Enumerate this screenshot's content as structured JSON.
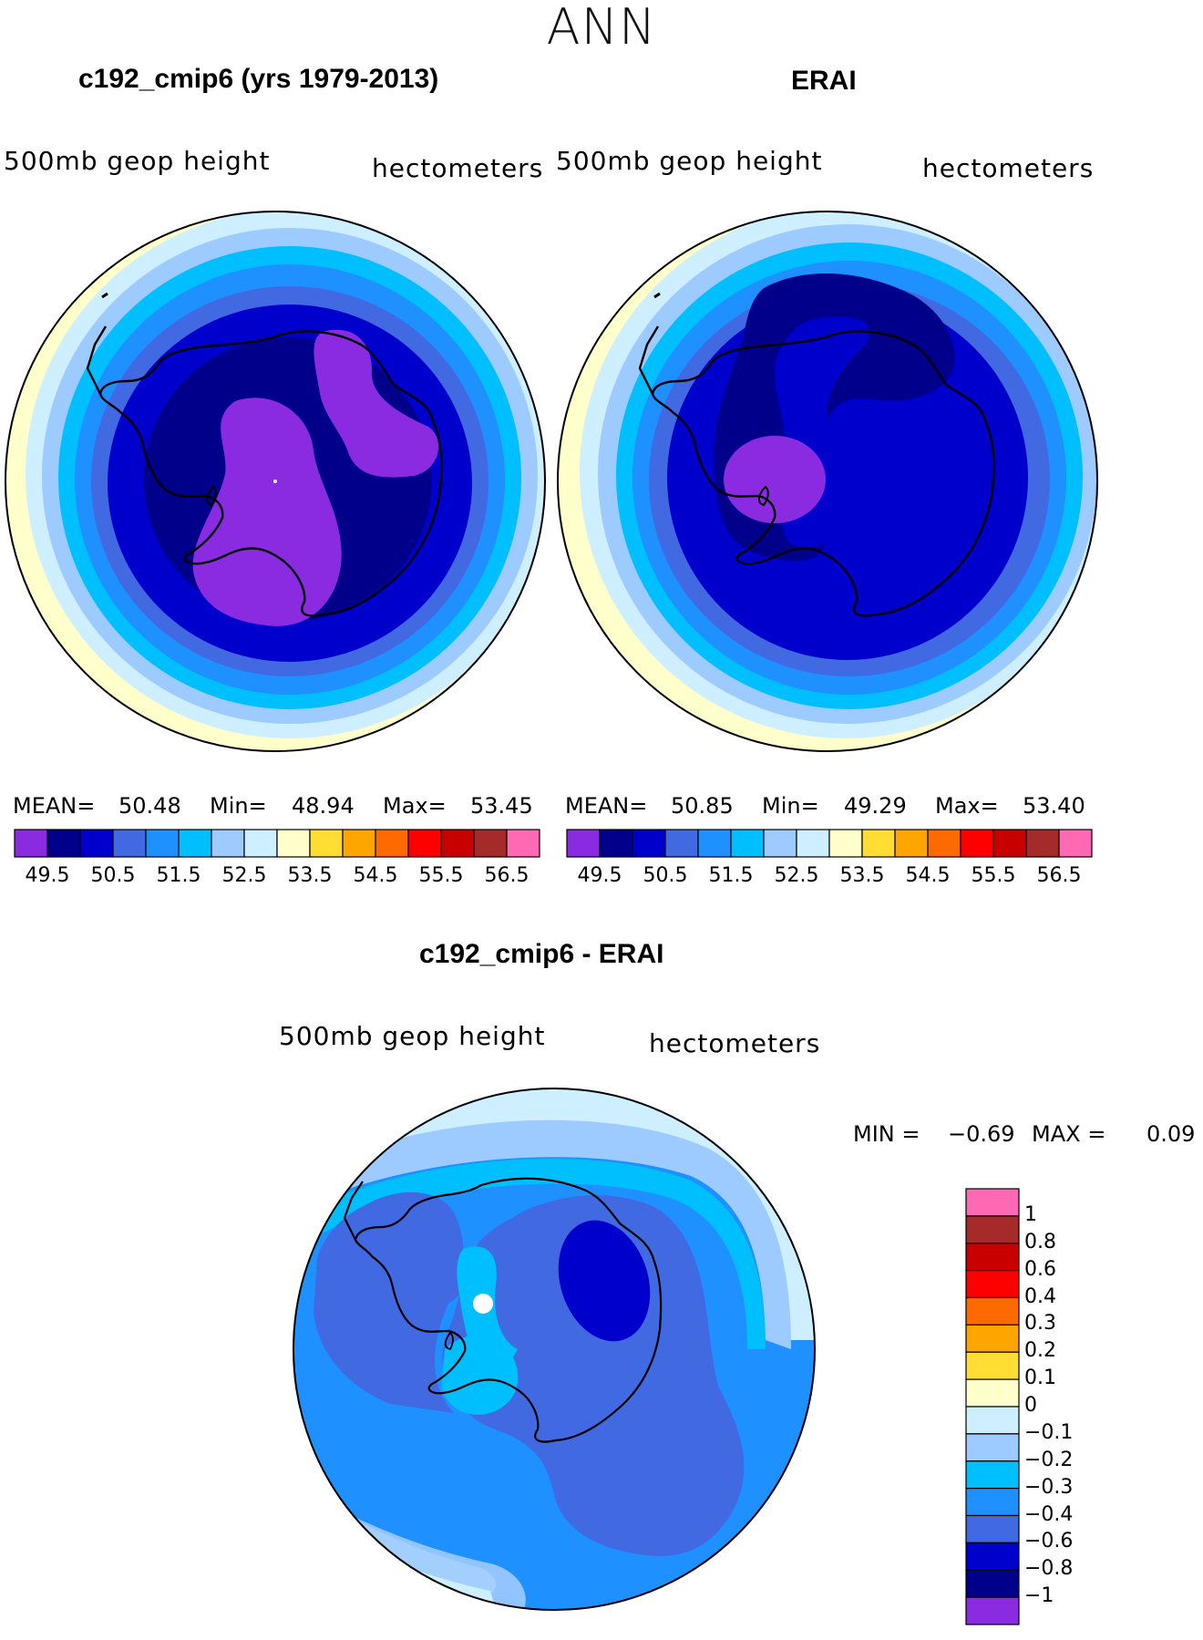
{
  "suptitle": "ANN",
  "colors": {
    "c49": "#8a2be2",
    "c50": "#00008b",
    "c505": "#0000cd",
    "c51": "#4169e1",
    "c515": "#1e90ff",
    "c52": "#00bfff",
    "c525": "#9ecbff",
    "c53": "#cdefff",
    "c535": "#ffffcc",
    "c54": "#ffdd33",
    "c545": "#ffa500",
    "c55": "#ff6a00",
    "c555": "#ff0000",
    "c56": "#c80000",
    "c565": "#a52a2a",
    "c57": "#ff69b4"
  },
  "panel_left": {
    "title": "c192_cmip6 (yrs 1979-2013)",
    "var_label": "500mb  geop  height",
    "unit_label": "hectometers",
    "mean_label": "MEAN=",
    "mean": "50.48",
    "min_label": "Min=",
    "min": "48.94",
    "max_label": "Max=",
    "max": "53.45"
  },
  "panel_right": {
    "title": "ERAI",
    "var_label": "500mb  geop  height",
    "unit_label": "hectometers",
    "mean_label": "MEAN=",
    "mean": "50.85",
    "min_label": "Min=",
    "min": "49.29",
    "max_label": "Max=",
    "max": "53.40"
  },
  "top_colorbar_ticks": [
    "49.5",
    "50.5",
    "51.5",
    "52.5",
    "53.5",
    "54.5",
    "55.5",
    "56.5"
  ],
  "panel_diff": {
    "title": "c192_cmip6 - ERAI",
    "var_label": "500mb  geop  height",
    "unit_label": "hectometers",
    "min_label": "MIN =",
    "min": "−0.69",
    "max_label": "MAX =",
    "max": "0.09"
  },
  "diff_colorbar_ticks": [
    "1",
    "0.8",
    "0.6",
    "0.4",
    "0.3",
    "0.2",
    "0.1",
    "0",
    "−0.1",
    "−0.2",
    "−0.3",
    "−0.4",
    "−0.6",
    "−0.8",
    "−1"
  ],
  "chart_data": [
    {
      "type": "heatmap",
      "projection": "south-polar-stereographic",
      "title": "c192_cmip6 (yrs 1979-2013)",
      "variable": "500mb geop height",
      "units": "hectometers",
      "mean": 50.48,
      "min": 48.94,
      "max": 53.45,
      "levels": [
        49.5,
        50.5,
        51.5,
        52.5,
        53.5,
        54.5,
        55.5,
        56.5
      ]
    },
    {
      "type": "heatmap",
      "projection": "south-polar-stereographic",
      "title": "ERAI",
      "variable": "500mb geop height",
      "units": "hectometers",
      "mean": 50.85,
      "min": 49.29,
      "max": 53.4,
      "levels": [
        49.5,
        50.5,
        51.5,
        52.5,
        53.5,
        54.5,
        55.5,
        56.5
      ]
    },
    {
      "type": "heatmap",
      "projection": "south-polar-stereographic",
      "title": "c192_cmip6 - ERAI",
      "variable": "500mb geop height",
      "units": "hectometers",
      "min": -0.69,
      "max": 0.09,
      "levels": [
        -1,
        -0.8,
        -0.6,
        -0.4,
        -0.3,
        -0.2,
        -0.1,
        0,
        0.1,
        0.2,
        0.3,
        0.4,
        0.6,
        0.8,
        1
      ]
    }
  ]
}
